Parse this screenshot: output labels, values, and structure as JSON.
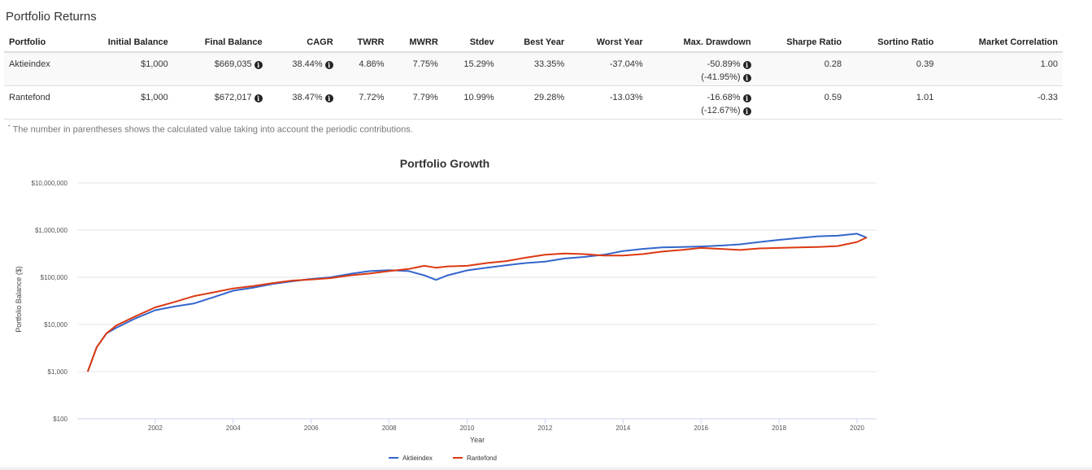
{
  "section_title": "Portfolio Returns",
  "table": {
    "columns": [
      "Portfolio",
      "Initial Balance",
      "Final Balance",
      "CAGR",
      "TWRR",
      "MWRR",
      "Stdev",
      "Best Year",
      "Worst Year",
      "Max. Drawdown",
      "Sharpe Ratio",
      "Sortino Ratio",
      "Market Correlation"
    ],
    "rows": [
      {
        "portfolio": "Aktieindex",
        "initial_balance": "$1,000",
        "final_balance": "$669,035",
        "cagr": "38.44%",
        "twrr": "4.86%",
        "mwrr": "7.75%",
        "stdev": "15.29%",
        "best_year": "33.35%",
        "worst_year": "-37.04%",
        "max_drawdown": "-50.89%",
        "max_drawdown_contrib": "(-41.95%)",
        "sharpe": "0.28",
        "sortino": "0.39",
        "market_correlation": "1.00"
      },
      {
        "portfolio": "Rantefond",
        "initial_balance": "$1,000",
        "final_balance": "$672,017",
        "cagr": "38.47%",
        "twrr": "7.72%",
        "mwrr": "7.79%",
        "stdev": "10.99%",
        "best_year": "29.28%",
        "worst_year": "-13.03%",
        "max_drawdown": "-16.68%",
        "max_drawdown_contrib": "(-12.67%)",
        "sharpe": "0.59",
        "sortino": "1.01",
        "market_correlation": "-0.33"
      }
    ]
  },
  "footnote": {
    "marker": "*",
    "text": " The number in parentheses shows the calculated value taking into account the periodic contributions."
  },
  "icons": {
    "info": "info-circle-icon"
  },
  "chart_data": {
    "type": "line",
    "title": "Portfolio Growth",
    "xlabel": "Year",
    "ylabel": "Portfolio Balance ($)",
    "yscale": "log",
    "ylim": [
      100,
      10000000
    ],
    "xlim": [
      2000,
      2020.5
    ],
    "grid": true,
    "legend": "bottom-center",
    "y_ticks": [
      100,
      1000,
      10000,
      100000,
      1000000,
      10000000
    ],
    "y_tick_labels": [
      "$100",
      "$1,000",
      "$10,000",
      "$100,000",
      "$1,000,000",
      "$10,000,000"
    ],
    "x_ticks": [
      2002,
      2004,
      2006,
      2008,
      2010,
      2012,
      2014,
      2016,
      2018,
      2020
    ],
    "x_tick_labels": [
      "2002",
      "2004",
      "2006",
      "2008",
      "2010",
      "2012",
      "2014",
      "2016",
      "2018",
      "2020"
    ],
    "x": [
      2000.27,
      2000.5,
      2000.75,
      2001.0,
      2001.5,
      2002.0,
      2002.5,
      2003.0,
      2003.5,
      2004.0,
      2004.5,
      2005.0,
      2005.5,
      2006.0,
      2006.5,
      2007.0,
      2007.5,
      2008.0,
      2008.5,
      2008.9,
      2009.2,
      2009.5,
      2010.0,
      2010.5,
      2011.0,
      2011.5,
      2012.0,
      2012.5,
      2013.0,
      2013.5,
      2014.0,
      2014.5,
      2015.0,
      2015.5,
      2016.0,
      2016.5,
      2017.0,
      2017.5,
      2018.0,
      2018.5,
      2019.0,
      2019.5,
      2020.0,
      2020.25
    ],
    "series": [
      {
        "name": "Aktieindex",
        "color": "#3366cc",
        "values": [
          1000,
          3300,
          6500,
          8500,
          13500,
          20000,
          24000,
          28000,
          38000,
          52000,
          60000,
          72000,
          82000,
          92000,
          100000,
          118000,
          135000,
          142000,
          135000,
          110000,
          88000,
          110000,
          140000,
          160000,
          180000,
          200000,
          215000,
          250000,
          270000,
          300000,
          360000,
          400000,
          430000,
          440000,
          450000,
          470000,
          500000,
          560000,
          620000,
          680000,
          740000,
          760000,
          840000,
          690000
        ]
      },
      {
        "name": "Rantefond",
        "color": "#dc3912",
        "values": [
          1000,
          3300,
          6500,
          9500,
          15000,
          23000,
          30000,
          40000,
          48000,
          58000,
          65000,
          75000,
          85000,
          90000,
          96000,
          110000,
          120000,
          135000,
          150000,
          175000,
          160000,
          170000,
          175000,
          200000,
          220000,
          260000,
          300000,
          320000,
          310000,
          290000,
          290000,
          310000,
          350000,
          380000,
          420000,
          400000,
          380000,
          410000,
          420000,
          430000,
          440000,
          460000,
          560000,
          700000
        ]
      }
    ]
  }
}
